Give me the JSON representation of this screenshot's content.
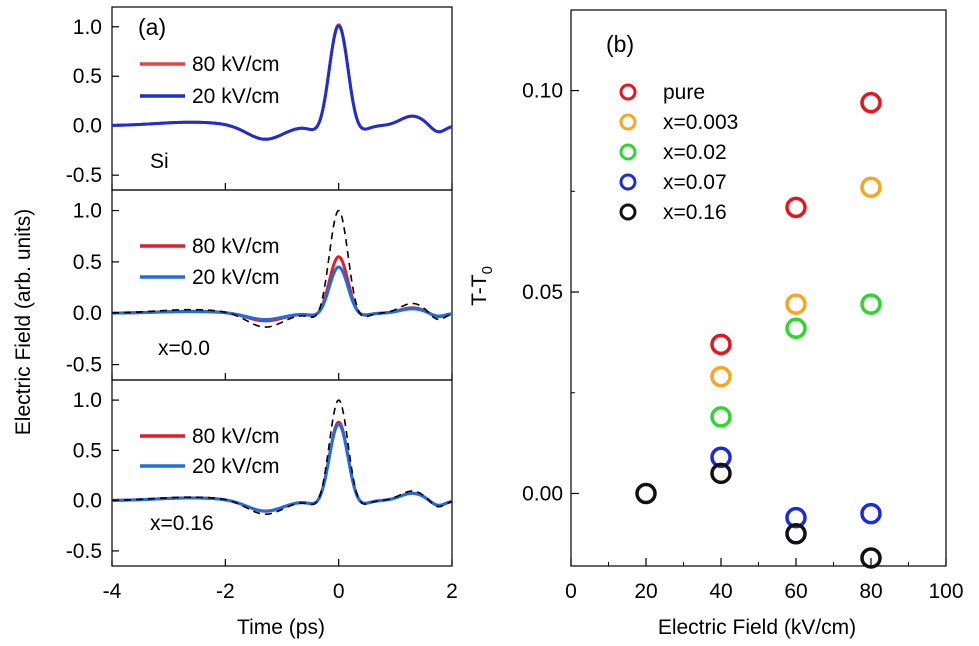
{
  "chart_data": [
    {
      "type": "line",
      "panel_label": "(a)",
      "xlabel": "Time (ps)",
      "ylabel": "Electric Field (arb. units)",
      "xlim": [
        -4,
        2
      ],
      "xticks": [
        -4,
        -2,
        0,
        2
      ],
      "subplots": [
        {
          "annotation": "Si",
          "ylim": [
            -0.65,
            1.2
          ],
          "yticks": [
            -0.5,
            0.0,
            0.5,
            1.0
          ],
          "ytick_labels": [
            "-0.5",
            "0.0",
            "0.5",
            "1.0"
          ],
          "reference_amplitude": 0,
          "series": [
            {
              "name": "80 kV/cm",
              "color": "#e8414a",
              "amplitude": 1.02
            },
            {
              "name": "20 kV/cm",
              "color": "#1f2fcf",
              "amplitude": 1.01
            }
          ]
        },
        {
          "annotation": "x=0.0",
          "ylim": [
            -0.65,
            1.2
          ],
          "yticks": [
            -0.5,
            0.0,
            0.5,
            1.0
          ],
          "ytick_labels": [
            "-0.5",
            "0.0",
            "0.5",
            "1.0"
          ],
          "reference_amplitude": 1.0,
          "series": [
            {
              "name": "80 kV/cm",
              "color": "#e11d2b",
              "amplitude": 0.55
            },
            {
              "name": "20 kV/cm",
              "color": "#1e6ee0",
              "amplitude": 0.45
            }
          ]
        },
        {
          "annotation": "x=0.16",
          "ylim": [
            -0.65,
            1.2
          ],
          "yticks": [
            -0.5,
            0.0,
            0.5,
            1.0
          ],
          "ytick_labels": [
            "-0.5",
            "0.0",
            "0.5",
            "1.0"
          ],
          "reference_amplitude": 1.0,
          "series": [
            {
              "name": "80 kV/cm",
              "color": "#e11d2b",
              "amplitude": 0.78
            },
            {
              "name": "20 kV/cm",
              "color": "#1e6ee0",
              "amplitude": 0.76
            }
          ]
        }
      ]
    },
    {
      "type": "scatter",
      "panel_label": "(b)",
      "xlabel": "Electric Field (kV/cm)",
      "ylabel": "T-T",
      "ylabel_subscript": "0",
      "xlim": [
        0,
        100
      ],
      "ylim": [
        -0.018,
        0.12
      ],
      "xticks": [
        0,
        20,
        40,
        60,
        80,
        100
      ],
      "yticks": [
        0.0,
        0.05,
        0.1
      ],
      "ytick_labels": [
        "0.00",
        "0.05",
        "0.10"
      ],
      "legend_position": "top-left",
      "series": [
        {
          "name": "pure",
          "color": "#e8141e",
          "x": [
            40,
            60,
            80
          ],
          "y": [
            0.037,
            0.071,
            0.097
          ]
        },
        {
          "name": "x=0.003",
          "color": "#f5a623",
          "x": [
            40,
            60,
            80
          ],
          "y": [
            0.029,
            0.047,
            0.076
          ]
        },
        {
          "name": "x=0.02",
          "color": "#2fd62f",
          "x": [
            40,
            60,
            80
          ],
          "y": [
            0.019,
            0.041,
            0.047
          ]
        },
        {
          "name": "x=0.07",
          "color": "#1c2bd6",
          "x": [
            40,
            60,
            80
          ],
          "y": [
            0.009,
            -0.006,
            -0.005
          ]
        },
        {
          "name": "x=0.16",
          "color": "#111111",
          "x": [
            20,
            40,
            60,
            80
          ],
          "y": [
            0.0,
            0.005,
            -0.01,
            -0.016
          ]
        }
      ]
    }
  ]
}
